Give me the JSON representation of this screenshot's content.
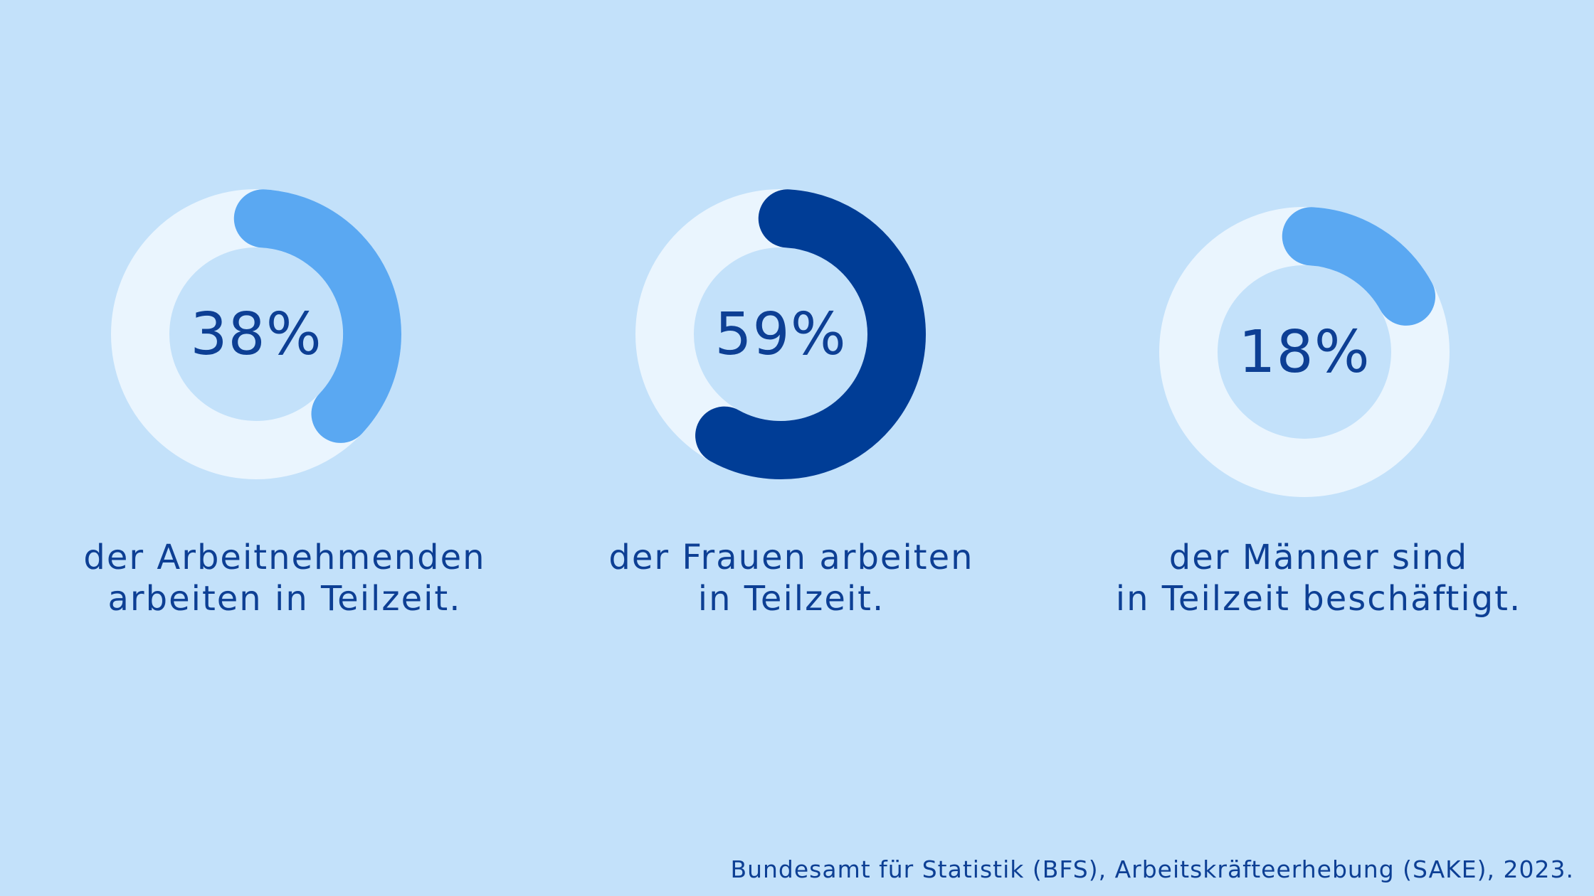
{
  "chart_data": [
    {
      "type": "pie",
      "value": 38,
      "label": "38%",
      "caption": [
        "der Arbeitnehmenden",
        "arbeiten in Teilzeit."
      ],
      "color": "#5aa8f2",
      "track_color": "#eaf5fe"
    },
    {
      "type": "pie",
      "value": 59,
      "label": "59%",
      "caption": [
        "der Frauen arbeiten",
        "in Teilzeit."
      ],
      "color": "#003d96",
      "track_color": "#eaf5fe"
    },
    {
      "type": "pie",
      "value": 18,
      "label": "18%",
      "caption": [
        "der Männer sind",
        "in Teilzeit beschäftigt."
      ],
      "color": "#5aa8f2",
      "track_color": "#eaf5fe"
    }
  ],
  "source": "Bundesamt für Statistik (BFS), Arbeitskräfteerhebung (SAKE), 2023.",
  "background_color": "#c3e1fa",
  "text_color": "#0d3f94"
}
